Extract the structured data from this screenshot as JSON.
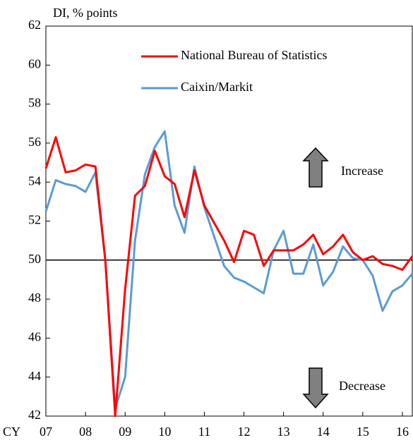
{
  "chart_data": {
    "type": "line",
    "y_label": "DI, % points",
    "x_label": "CY",
    "annotations": [
      "Increase",
      "Decrease"
    ],
    "x": [
      2007,
      2007.25,
      2007.5,
      2007.75,
      2008,
      2008.25,
      2008.5,
      2008.75,
      2009,
      2009.25,
      2009.5,
      2009.75,
      2010,
      2010.25,
      2010.5,
      2010.75,
      2011,
      2011.25,
      2011.5,
      2011.75,
      2012,
      2012.25,
      2012.5,
      2012.75,
      2013,
      2013.25,
      2013.5,
      2013.75,
      2014,
      2014.25,
      2014.5,
      2014.75,
      2015,
      2015.25,
      2015.5,
      2015.75,
      2016,
      2016.25
    ],
    "series": [
      {
        "name": "National Bureau of Statistics",
        "color": "#ff0000",
        "values": [
          54.7,
          56.3,
          54.5,
          54.6,
          54.9,
          54.8,
          50.0,
          42.0,
          48.5,
          53.3,
          53.8,
          55.6,
          54.3,
          53.9,
          52.2,
          54.6,
          52.8,
          51.9,
          51.0,
          49.9,
          51.5,
          51.3,
          49.7,
          50.5,
          50.5,
          50.5,
          50.8,
          51.3,
          50.3,
          50.7,
          51.3,
          50.4,
          50.0,
          50.2,
          49.8,
          49.7,
          49.5,
          50.2
        ]
      },
      {
        "name": "Caixin/Markit",
        "color": "#5b9bd5",
        "values": [
          52.5,
          54.1,
          53.9,
          53.8,
          53.5,
          54.5,
          50.0,
          42.4,
          44.0,
          51.0,
          54.4,
          55.8,
          56.6,
          52.8,
          51.4,
          54.8,
          52.7,
          51.2,
          49.7,
          49.1,
          48.9,
          48.6,
          48.3,
          50.5,
          51.5,
          49.3,
          49.3,
          50.8,
          48.7,
          49.4,
          50.7,
          50.1,
          50.0,
          49.2,
          47.4,
          48.4,
          48.7,
          49.3
        ]
      }
    ],
    "xlim": [
      2007,
      2016.25
    ],
    "xticks": [
      {
        "value": 2007,
        "label": "07"
      },
      {
        "value": 2008,
        "label": "08"
      },
      {
        "value": 2009,
        "label": "09"
      },
      {
        "value": 2010,
        "label": "10"
      },
      {
        "value": 2011,
        "label": "11"
      },
      {
        "value": 2012,
        "label": "12"
      },
      {
        "value": 2013,
        "label": "13"
      },
      {
        "value": 2014,
        "label": "14"
      },
      {
        "value": 2015,
        "label": "15"
      },
      {
        "value": 2016,
        "label": "16"
      }
    ],
    "ylim": [
      42,
      62
    ],
    "yticks": [
      42,
      44,
      46,
      48,
      50,
      52,
      54,
      56,
      58,
      60,
      62
    ],
    "reference_line": 50,
    "grid": false,
    "legend": "top-right"
  }
}
